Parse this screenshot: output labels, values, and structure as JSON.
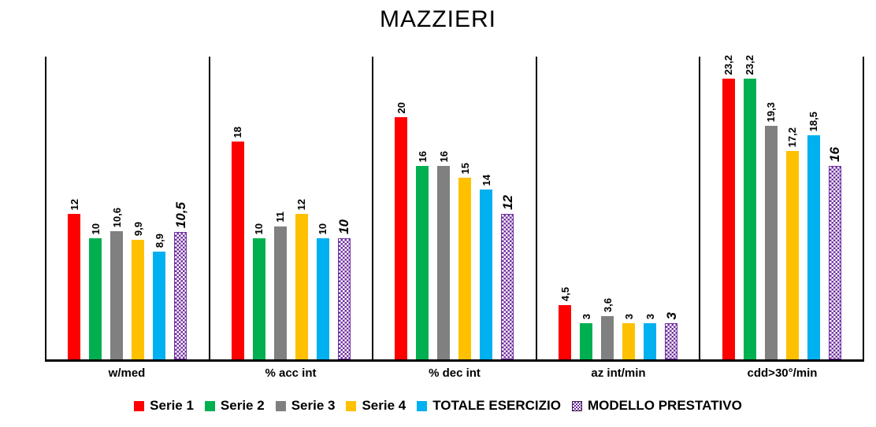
{
  "title": "MAZZIERI",
  "chart_data": {
    "type": "bar",
    "title": "MAZZIERI",
    "categories": [
      "w/med",
      "% acc int",
      "% dec int",
      "az int/min",
      "cdd>30°/min"
    ],
    "series": [
      {
        "name": "Serie 1",
        "color": "#FF0000",
        "values": [
          12,
          18,
          20,
          4.5,
          23.2
        ],
        "labels": [
          "12",
          "18",
          "20",
          "4,5",
          "23,2"
        ]
      },
      {
        "name": "Serie 2",
        "color": "#00B050",
        "values": [
          10,
          10,
          16,
          3,
          23.2
        ],
        "labels": [
          "10",
          "10",
          "16",
          "3",
          "23,2"
        ]
      },
      {
        "name": "Serie 3",
        "color": "#808080",
        "values": [
          10.6,
          11,
          16,
          3.6,
          19.3
        ],
        "labels": [
          "10,6",
          "11",
          "16",
          "3,6",
          "19,3"
        ]
      },
      {
        "name": "Serie 4",
        "color": "#FFC000",
        "values": [
          9.9,
          12,
          15,
          3,
          17.2
        ],
        "labels": [
          "9,9",
          "12",
          "15",
          "3",
          "17,2"
        ]
      },
      {
        "name": "TOTALE ESERCIZIO",
        "color": "#00B0F0",
        "values": [
          8.9,
          10,
          14,
          3,
          18.5
        ],
        "labels": [
          "8,9",
          "10",
          "14",
          "3",
          "18,5"
        ]
      },
      {
        "name": "MODELLO PRESTATIVO",
        "color": "#7030A0",
        "pattern": "checkerboard",
        "emphasis": true,
        "values": [
          10.5,
          10,
          12,
          3,
          16
        ],
        "labels": [
          "10,5",
          "10",
          "12",
          "3",
          "16"
        ]
      }
    ],
    "ylim": [
      0,
      25
    ],
    "xlabel": "",
    "ylabel": "",
    "y_axis_visible": false,
    "grid": "vertical-category-separators",
    "legend_position": "bottom",
    "decimal_separator": ",",
    "colors": {
      "axis": "#000000",
      "background": "#FFFFFF",
      "pattern_fill": "#7030A0"
    }
  }
}
